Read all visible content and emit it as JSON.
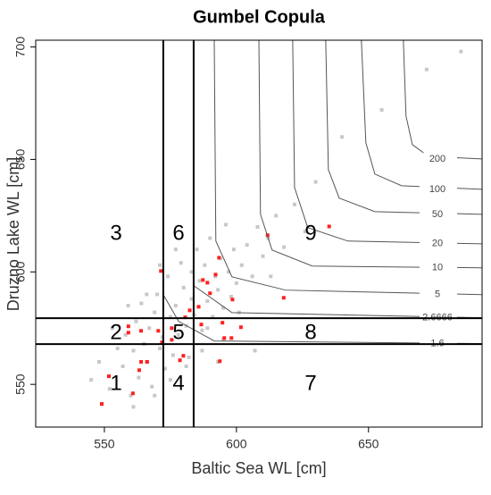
{
  "chart_data": {
    "type": "scatter",
    "title": "Gumbel Copula",
    "x_label": "Baltic Sea WL [cm]",
    "y_label": "Druzno Lake WL [cm]",
    "xlim": [
      524,
      693
    ],
    "ylim": [
      531,
      703
    ],
    "xticks": [
      550,
      600,
      650
    ],
    "yticks": [
      550,
      600,
      650,
      700
    ],
    "vlines": [
      572.3,
      583.8
    ],
    "hlines": [
      579.4,
      567.9
    ],
    "regions": [
      "1",
      "2",
      "3",
      "4",
      "5",
      "6",
      "7",
      "8",
      "9"
    ],
    "series": [
      {
        "color": "#c8c8c8",
        "x": [
          545,
          548,
          552,
          555,
          557,
          558,
          560,
          561,
          562,
          563,
          564,
          565,
          566,
          567,
          568,
          569,
          570,
          571,
          572,
          573,
          574,
          575,
          576,
          577,
          578,
          579,
          580,
          581,
          582,
          583,
          584,
          585,
          586,
          587,
          588,
          589,
          590,
          591,
          592,
          593,
          594,
          595,
          596,
          597,
          598,
          599,
          600,
          602,
          604,
          606,
          608,
          610,
          612,
          615,
          618,
          622,
          626,
          630,
          640,
          655,
          672,
          685,
          553,
          559,
          566,
          571,
          577,
          583,
          589,
          595,
          601,
          607,
          613,
          561,
          569,
          575,
          581,
          587,
          593
        ],
        "y": [
          552,
          560,
          548,
          566,
          558,
          572,
          545,
          565,
          578,
          553,
          586,
          568,
          560,
          575,
          549,
          582,
          590,
          566,
          571,
          557,
          598,
          580,
          563,
          585,
          572,
          604,
          593,
          576,
          562,
          588,
          581,
          610,
          596,
          574,
          603,
          587,
          615,
          580,
          598,
          592,
          606,
          584,
          621,
          600,
          589,
          610,
          595,
          603,
          612,
          598,
          620,
          607,
          615,
          625,
          611,
          630,
          618,
          640,
          660,
          672,
          690,
          698,
          575,
          585,
          590,
          603,
          610,
          600,
          575,
          570,
          582,
          565,
          598,
          540,
          545,
          552,
          558,
          565,
          560
        ]
      },
      {
        "color": "#ff2020",
        "x": [
          549.0,
          551.7,
          560.8,
          563.2,
          563.9,
          566.2,
          559.1,
          559.1,
          563.9,
          571.4,
          570.4,
          571.8,
          575.5,
          575.5,
          579.9,
          578.6,
          580.6,
          582.3,
          585.7,
          586.7,
          587.3,
          589.0,
          590.0,
          592.1,
          593.4,
          598.5,
          595.4,
          598.1,
          594.7,
          593.7,
          601.7,
          617.9,
          611.8,
          635.1
        ],
        "y": [
          541.3,
          553.6,
          546.0,
          556.3,
          560.0,
          560.0,
          573.0,
          575.8,
          573.8,
          600.4,
          573.8,
          568.7,
          575.0,
          569.8,
          562.7,
          560.7,
          579.8,
          582.9,
          584.5,
          576.6,
          596.4,
          595.2,
          590.5,
          598.8,
          606.3,
          587.7,
          570.6,
          570.6,
          577.4,
          560.3,
          575.4,
          588.5,
          616.3,
          620.2
        ]
      }
    ],
    "contours": [
      {
        "level": 200,
        "x": [
          663.2,
          664.2,
          666.6,
          672.6,
          692.9
        ],
        "y": [
          703,
          669.3,
          656.6,
          651.4,
          650.2
        ]
      },
      {
        "level": 100,
        "x": [
          647.3,
          649.0,
          652.4,
          662.5,
          692.9
        ],
        "y": [
          703,
          657.4,
          643.5,
          638.3,
          636.7
        ]
      },
      {
        "level": 50,
        "x": [
          633.8,
          634.8,
          638.9,
          652.4,
          692.9
        ],
        "y": [
          703,
          645.5,
          632.8,
          626.8,
          625.6
        ]
      },
      {
        "level": 20,
        "x": [
          621.3,
          622.0,
          627.0,
          642.2,
          692.9
        ],
        "y": [
          703,
          637.5,
          619.7,
          613.7,
          612.5
        ]
      },
      {
        "level": 10,
        "x": [
          608.5,
          609.1,
          613.5,
          628.7,
          692.9
        ],
        "y": [
          703,
          625.6,
          609.7,
          602.6,
          601.8
        ]
      },
      {
        "level": 5,
        "x": [
          591.6,
          592.2,
          598.3,
          618.6,
          692.9
        ],
        "y": [
          703,
          613.7,
          597.8,
          591.9,
          589.9
        ]
      },
      {
        "level": 2.6666,
        "x": [
          583.8,
          598.3,
          692.9
        ],
        "y": [
          593.9,
          581.9,
          579.6
        ]
      },
      {
        "level": 1.6,
        "x": [
          572.3,
          578.1,
          591.6,
          692.9
        ],
        "y": [
          589.9,
          578.0,
          569.3,
          568.1
        ]
      }
    ]
  }
}
